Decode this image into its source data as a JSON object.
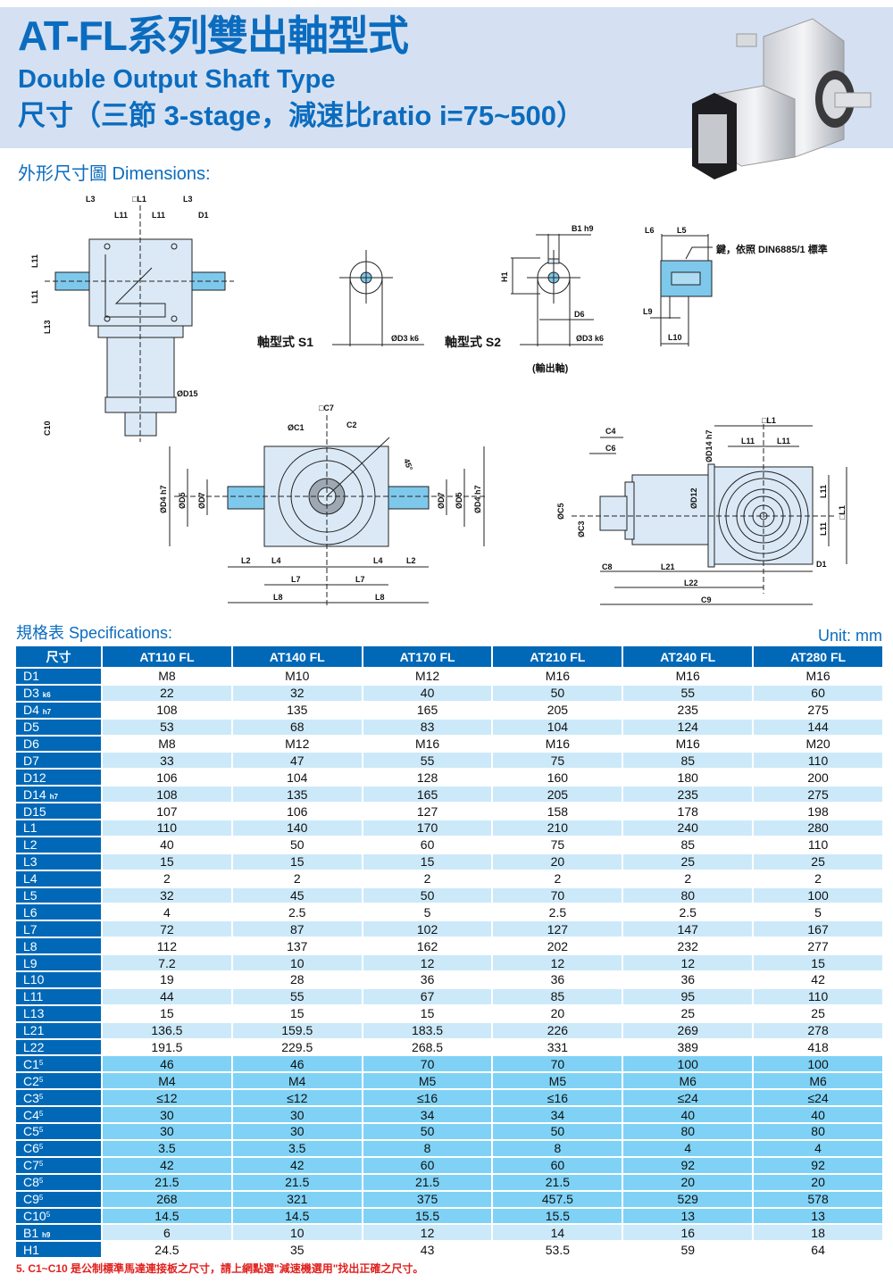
{
  "header": {
    "title": "AT-FL系列雙出軸型式",
    "subtitle": "Double Output Shaft Type",
    "ratio_line": "尺寸（三節 3-stage，減速比ratio i=75~500）"
  },
  "dimensions": {
    "heading": "外形尺寸圖 Dimensions:",
    "labels": {
      "L3": "L3",
      "sqL1": "□L1",
      "L11": "L11",
      "D1": "D1",
      "L13": "L13",
      "D15": "ØD15",
      "C10": "C10",
      "s1": "軸型式 S1",
      "s2": "軸型式 S2",
      "D3": "ØD3 k6",
      "output": "(輸出軸)",
      "B1": "B1 h9",
      "H1": "H1",
      "D6": "D6",
      "L6": "L6",
      "L5": "L5",
      "key": "鍵，依照 DIN6885/1 標準",
      "L9": "L9",
      "L10": "L10",
      "C7": "□C7",
      "C1": "ØC1",
      "C2": "C2",
      "deg": "45°",
      "D4": "ØD4 h7",
      "D5": "ØD5",
      "D7": "ØD7",
      "L2": "L2",
      "L4": "L4",
      "L7": "L7",
      "L8": "L8",
      "C4": "C4",
      "C6": "C6",
      "D14": "ØD14 h7",
      "D12": "ØD12",
      "C5": "ØC5",
      "C3": "ØC3",
      "C8": "C8",
      "L21": "L21",
      "L22": "L22",
      "C9": "C9"
    }
  },
  "specs": {
    "heading": "規格表 Specifications:",
    "unit": "Unit: mm",
    "columns": [
      "尺寸",
      "AT110 FL",
      "AT140 FL",
      "AT170 FL",
      "AT210 FL",
      "AT240 FL",
      "AT280 FL"
    ],
    "rows": [
      {
        "label": "D1",
        "values": [
          "M8",
          "M10",
          "M12",
          "M16",
          "M16",
          "M16"
        ]
      },
      {
        "label": "D3",
        "sub": "k6",
        "values": [
          "22",
          "32",
          "40",
          "50",
          "55",
          "60"
        ]
      },
      {
        "label": "D4",
        "sub": "h7",
        "values": [
          "108",
          "135",
          "165",
          "205",
          "235",
          "275"
        ]
      },
      {
        "label": "D5",
        "values": [
          "53",
          "68",
          "83",
          "104",
          "124",
          "144"
        ]
      },
      {
        "label": "D6",
        "values": [
          "M8",
          "M12",
          "M16",
          "M16",
          "M16",
          "M20"
        ]
      },
      {
        "label": "D7",
        "values": [
          "33",
          "47",
          "55",
          "75",
          "85",
          "110"
        ]
      },
      {
        "label": "D12",
        "values": [
          "106",
          "104",
          "128",
          "160",
          "180",
          "200"
        ]
      },
      {
        "label": "D14",
        "sub": "h7",
        "values": [
          "108",
          "135",
          "165",
          "205",
          "235",
          "275"
        ]
      },
      {
        "label": "D15",
        "values": [
          "107",
          "106",
          "127",
          "158",
          "178",
          "198"
        ]
      },
      {
        "label": "L1",
        "values": [
          "110",
          "140",
          "170",
          "210",
          "240",
          "280"
        ]
      },
      {
        "label": "L2",
        "values": [
          "40",
          "50",
          "60",
          "75",
          "85",
          "110"
        ]
      },
      {
        "label": "L3",
        "values": [
          "15",
          "15",
          "15",
          "20",
          "25",
          "25"
        ]
      },
      {
        "label": "L4",
        "values": [
          "2",
          "2",
          "2",
          "2",
          "2",
          "2"
        ]
      },
      {
        "label": "L5",
        "values": [
          "32",
          "45",
          "50",
          "70",
          "80",
          "100"
        ]
      },
      {
        "label": "L6",
        "values": [
          "4",
          "2.5",
          "5",
          "2.5",
          "2.5",
          "5"
        ]
      },
      {
        "label": "L7",
        "values": [
          "72",
          "87",
          "102",
          "127",
          "147",
          "167"
        ]
      },
      {
        "label": "L8",
        "values": [
          "112",
          "137",
          "162",
          "202",
          "232",
          "277"
        ]
      },
      {
        "label": "L9",
        "values": [
          "7.2",
          "10",
          "12",
          "12",
          "12",
          "15"
        ]
      },
      {
        "label": "L10",
        "values": [
          "19",
          "28",
          "36",
          "36",
          "36",
          "42"
        ]
      },
      {
        "label": "L11",
        "values": [
          "44",
          "55",
          "67",
          "85",
          "95",
          "110"
        ]
      },
      {
        "label": "L13",
        "values": [
          "15",
          "15",
          "15",
          "20",
          "25",
          "25"
        ]
      },
      {
        "label": "L21",
        "values": [
          "136.5",
          "159.5",
          "183.5",
          "226",
          "269",
          "278"
        ]
      },
      {
        "label": "L22",
        "values": [
          "191.5",
          "229.5",
          "268.5",
          "331",
          "389",
          "418"
        ]
      },
      {
        "label": "C1",
        "sup": "5",
        "values": [
          "46",
          "46",
          "70",
          "70",
          "100",
          "100"
        ]
      },
      {
        "label": "C2",
        "sup": "5",
        "values": [
          "M4",
          "M4",
          "M5",
          "M5",
          "M6",
          "M6"
        ]
      },
      {
        "label": "C3",
        "sup": "5",
        "values": [
          "≤12",
          "≤12",
          "≤16",
          "≤16",
          "≤24",
          "≤24"
        ]
      },
      {
        "label": "C4",
        "sup": "5",
        "values": [
          "30",
          "30",
          "34",
          "34",
          "40",
          "40"
        ]
      },
      {
        "label": "C5",
        "sup": "5",
        "values": [
          "30",
          "30",
          "50",
          "50",
          "80",
          "80"
        ]
      },
      {
        "label": "C6",
        "sup": "5",
        "values": [
          "3.5",
          "3.5",
          "8",
          "8",
          "4",
          "4"
        ]
      },
      {
        "label": "C7",
        "sup": "5",
        "values": [
          "42",
          "42",
          "60",
          "60",
          "92",
          "92"
        ]
      },
      {
        "label": "C8",
        "sup": "5",
        "values": [
          "21.5",
          "21.5",
          "21.5",
          "21.5",
          "20",
          "20"
        ]
      },
      {
        "label": "C9",
        "sup": "5",
        "values": [
          "268",
          "321",
          "375",
          "457.5",
          "529",
          "578"
        ]
      },
      {
        "label": "C10",
        "sup": "5",
        "values": [
          "14.5",
          "14.5",
          "15.5",
          "15.5",
          "13",
          "13"
        ]
      },
      {
        "label": "B1",
        "sub": "h9",
        "values": [
          "6",
          "10",
          "12",
          "14",
          "16",
          "18"
        ]
      },
      {
        "label": "H1",
        "values": [
          "24.5",
          "35",
          "43",
          "53.5",
          "59",
          "64"
        ]
      }
    ]
  },
  "footnote": "5. C1~C10 是公制標準馬達連接板之尺寸，請上網點選\"減速機選用\"找出正確之尺寸。",
  "colors": {
    "brand": "#0b6cbf",
    "header_cell": "#0068b7",
    "row_light": "#cce9f9",
    "row_c": "#7fd2f6",
    "note": "#e0201d"
  }
}
